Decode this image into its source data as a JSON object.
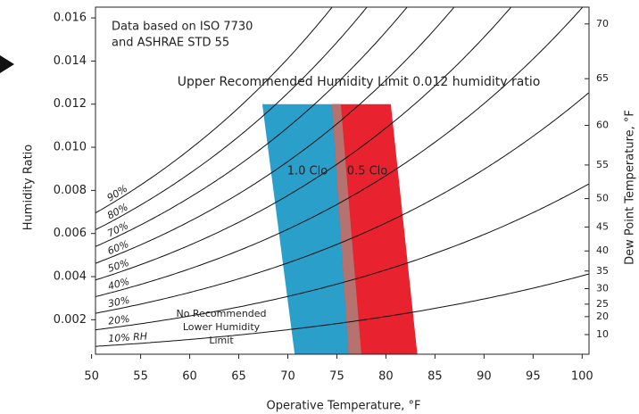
{
  "chart_data": {
    "type": "psychrometric",
    "xlabel": "Operative Temperature, °F",
    "ylabel": "Humidity Ratio",
    "y2label": "Dew Point Temperature, °F",
    "xlim": [
      50.4,
      100.7
    ],
    "xticks": [
      50,
      55,
      60,
      65,
      70,
      75,
      80,
      85,
      90,
      95,
      100
    ],
    "ylim": [
      0.0004,
      0.0165
    ],
    "yticks": [
      0.002,
      0.004,
      0.006,
      0.008,
      {
        "value": 0.01,
        "label": "0.010"
      },
      0.012,
      0.014,
      0.016
    ],
    "y2ticks": [
      10,
      20,
      25,
      30,
      35,
      40,
      45,
      50,
      55,
      60,
      65,
      70
    ],
    "rh_curves": [
      {
        "rh": 10,
        "label": "10% RH"
      },
      {
        "rh": 20,
        "label": "20%"
      },
      {
        "rh": 30,
        "label": "30%"
      },
      {
        "rh": 40,
        "label": "40%"
      },
      {
        "rh": 50,
        "label": "50%"
      },
      {
        "rh": 60,
        "label": "60%"
      },
      {
        "rh": 70,
        "label": "70%"
      },
      {
        "rh": 80,
        "label": "80%"
      },
      {
        "rh": 90,
        "label": "90%"
      }
    ],
    "zones": [
      {
        "name": "1.0 Clo",
        "color": "#2a9fc9",
        "points": [
          [
            67.4,
            0.012
          ],
          [
            75.4,
            0.012
          ],
          [
            77.5,
            0.0004
          ],
          [
            70.7,
            0.0004
          ]
        ]
      },
      {
        "name": "0.5 Clo",
        "color": "#e8222e",
        "points": [
          [
            74.5,
            0.012
          ],
          [
            80.5,
            0.012
          ],
          [
            83.2,
            0.0004
          ],
          [
            76.2,
            0.0004
          ]
        ]
      }
    ],
    "overlap_color": "#b5726f",
    "note": [
      "Data based on ISO 7730",
      "and ASHRAE STD 55"
    ],
    "upper_limit": "Upper Recommended Humidity Limit 0.012 humidity ratio",
    "lower_limit": [
      "No Recommended",
      "Lower Humidity",
      "Limit"
    ]
  }
}
